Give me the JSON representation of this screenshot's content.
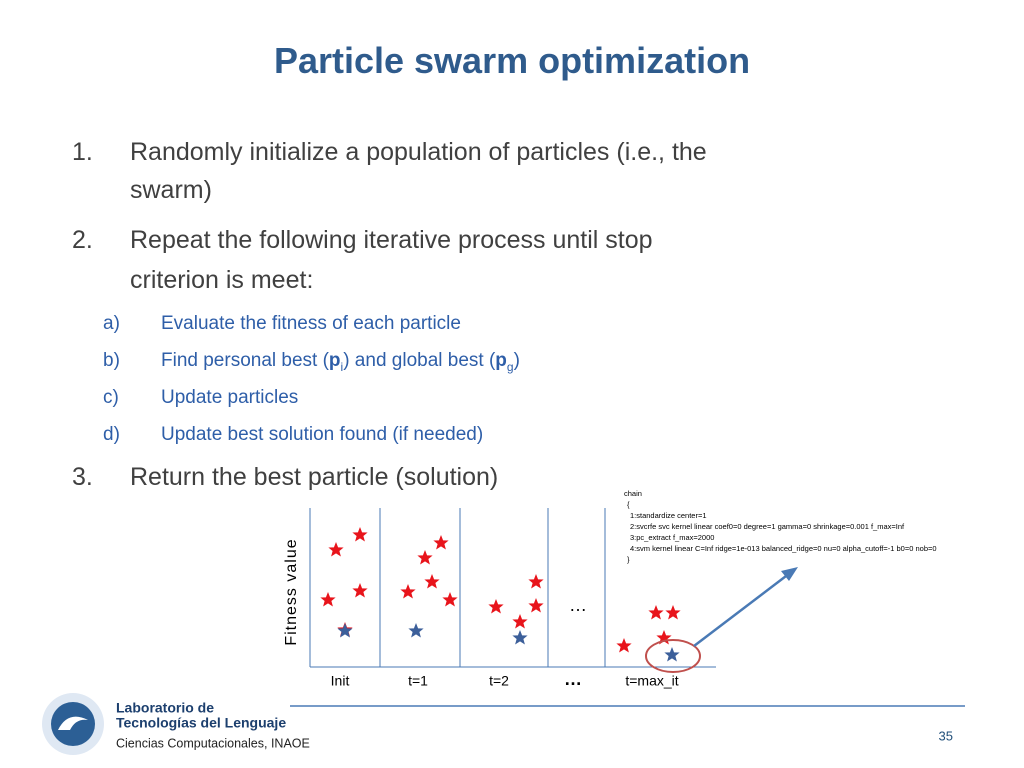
{
  "title": "Particle swarm optimization",
  "steps": [
    {
      "number": "1.",
      "lines": [
        "Randomly initialize a population of particles (i.e., the",
        "swarm)"
      ]
    },
    {
      "number": "2.",
      "lines": [
        "Repeat the following iterative process until stop",
        "criterion is meet:"
      ],
      "substeps": [
        {
          "label": "a)",
          "parts": [
            "Evaluate the fitness of each particle"
          ]
        },
        {
          "label": "b)",
          "parts": [
            "Find personal best (",
            "p",
            "i",
            ") and global best (",
            "p",
            "g",
            ")"
          ]
        },
        {
          "label": "c)",
          "parts": [
            "Update particles"
          ]
        },
        {
          "label": "d)",
          "parts": [
            "Update best solution found (if needed)"
          ]
        }
      ]
    },
    {
      "number": "3.",
      "lines": [
        "Return the best particle (solution)"
      ]
    }
  ],
  "code": {
    "lines": [
      "chain",
      "{",
      "1:standardize center=1",
      "2:svcrfe svc kernel linear coef0=0 degree=1 gamma=0 shrinkage=0.001 f_max=Inf",
      "3:pc_extract f_max=2000",
      "4:svm kernel linear C=Inf ridge=1e-013 balanced_ridge=0 nu=0 alpha_cutoff=-1 b0=0 nob=0",
      "}"
    ]
  },
  "diagram": {
    "y_label": "Fitness value",
    "x_labels": [
      "Init",
      "t=1",
      "t=2",
      "…",
      "t=max_it"
    ],
    "ellipsis": "…"
  },
  "footer": {
    "org_lines": [
      "Laboratorio de",
      "Tecnologías del Lenguaje",
      "Ciencias Computacionales, INAOE"
    ],
    "page_number": "35"
  }
}
